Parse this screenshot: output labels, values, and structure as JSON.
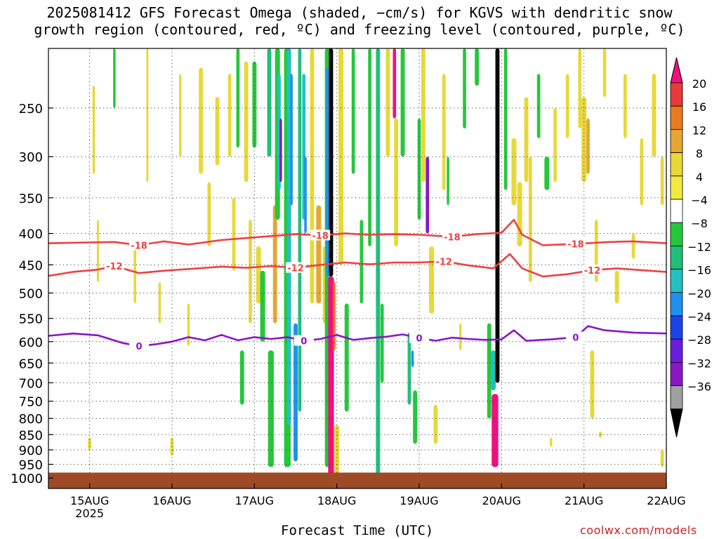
{
  "title_line1": "2025081412 GFS Forecast Omega (shaded, −cm/s) for KGVS with dendritic snow",
  "title_line2": "growth region (contoured, red, ºC) and freezing level (contoured, purple, ºC)",
  "credit": "coolwx.com/models",
  "chart_data": {
    "type": "heatmap",
    "title": "2025081412 GFS Forecast Omega (shaded, −cm/s) for KGVS with dendritic snow growth region (contoured, red, ºC) and freezing level (contoured, purple, ºC)",
    "xlabel": "Forecast Time (UTC)",
    "ylabel": "",
    "y_scale": "log-pressure",
    "y_reversed": true,
    "grid": true,
    "x_ticks": [
      {
        "day": 15,
        "label": "15AUG",
        "sublabel": "2025"
      },
      {
        "day": 16,
        "label": "16AUG"
      },
      {
        "day": 17,
        "label": "17AUG"
      },
      {
        "day": 18,
        "label": "18AUG"
      },
      {
        "day": 19,
        "label": "19AUG"
      },
      {
        "day": 20,
        "label": "20AUG"
      },
      {
        "day": 21,
        "label": "21AUG"
      },
      {
        "day": 22,
        "label": "22AUG"
      }
    ],
    "x_range_days": [
      14.5,
      22
    ],
    "y_ticks": [
      250,
      300,
      350,
      400,
      450,
      500,
      550,
      600,
      650,
      700,
      750,
      800,
      850,
      900,
      950,
      1000
    ],
    "y_range_hpa": [
      200,
      1040
    ],
    "surface_pressure_hpa": 980,
    "colorbar": {
      "labels": [
        "20",
        "16",
        "12",
        "8",
        "4",
        "−4",
        "−8",
        "−12",
        "−16",
        "−20",
        "−24",
        "−28",
        "−32",
        "−36"
      ],
      "colors": [
        "#f0107e",
        "#e83a3a",
        "#e97a20",
        "#e5a633",
        "#e8d838",
        "#f2ea3e",
        "#ffffff",
        "#24c83a",
        "#1fc07a",
        "#22c0c0",
        "#1e90f0",
        "#1c44e8",
        "#6a1fe0",
        "#8a16c8",
        "#a0a0a0",
        "#000000"
      ]
    },
    "contours": [
      {
        "name": "−18",
        "color": "#ef4040",
        "label": "-18",
        "points": [
          [
            14.5,
            415
          ],
          [
            14.9,
            414
          ],
          [
            15.3,
            413
          ],
          [
            15.6,
            418
          ],
          [
            15.9,
            412
          ],
          [
            16.2,
            417
          ],
          [
            16.6,
            410
          ],
          [
            16.9,
            407
          ],
          [
            17.2,
            404
          ],
          [
            17.5,
            401
          ],
          [
            17.8,
            403
          ],
          [
            18.1,
            400
          ],
          [
            18.4,
            402
          ],
          [
            18.7,
            401
          ],
          [
            19.0,
            402
          ],
          [
            19.4,
            405
          ],
          [
            19.7,
            401
          ],
          [
            20.0,
            399
          ],
          [
            20.15,
            380
          ],
          [
            20.25,
            402
          ],
          [
            20.5,
            418
          ],
          [
            20.9,
            416
          ],
          [
            21.3,
            413
          ],
          [
            21.6,
            412
          ],
          [
            22.0,
            415
          ]
        ]
      },
      {
        "name": "−12",
        "color": "#ef4040",
        "label": "-12",
        "points": [
          [
            14.5,
            469
          ],
          [
            14.8,
            462
          ],
          [
            15.1,
            458
          ],
          [
            15.3,
            452
          ],
          [
            15.6,
            464
          ],
          [
            15.9,
            460
          ],
          [
            16.2,
            457
          ],
          [
            16.6,
            453
          ],
          [
            16.9,
            455
          ],
          [
            17.2,
            452
          ],
          [
            17.5,
            455
          ],
          [
            17.8,
            450
          ],
          [
            18.1,
            446
          ],
          [
            18.4,
            449
          ],
          [
            18.7,
            446
          ],
          [
            19.0,
            446
          ],
          [
            19.3,
            444
          ],
          [
            19.6,
            451
          ],
          [
            19.9,
            456
          ],
          [
            20.1,
            432
          ],
          [
            20.25,
            456
          ],
          [
            20.5,
            470
          ],
          [
            20.8,
            466
          ],
          [
            21.1,
            459
          ],
          [
            21.4,
            456
          ],
          [
            21.7,
            459
          ],
          [
            22.0,
            462
          ]
        ]
      },
      {
        "name": "0",
        "color": "#8c14c8",
        "label": "0",
        "points": [
          [
            14.5,
            587
          ],
          [
            14.8,
            582
          ],
          [
            15.1,
            586
          ],
          [
            15.4,
            603
          ],
          [
            15.6,
            610
          ],
          [
            15.8,
            606
          ],
          [
            16.0,
            600
          ],
          [
            16.2,
            590
          ],
          [
            16.4,
            597
          ],
          [
            16.6,
            585
          ],
          [
            16.8,
            597
          ],
          [
            17.0,
            590
          ],
          [
            17.2,
            594
          ],
          [
            17.4,
            590
          ],
          [
            17.6,
            598
          ],
          [
            17.8,
            594
          ],
          [
            18.0,
            585
          ],
          [
            18.2,
            596
          ],
          [
            18.4,
            592
          ],
          [
            18.6,
            589
          ],
          [
            18.8,
            584
          ],
          [
            19.0,
            592
          ],
          [
            19.2,
            598
          ],
          [
            19.4,
            591
          ],
          [
            19.6,
            594
          ],
          [
            19.8,
            596
          ],
          [
            20.0,
            595
          ],
          [
            20.15,
            575
          ],
          [
            20.3,
            598
          ],
          [
            20.6,
            595
          ],
          [
            20.9,
            590
          ],
          [
            21.05,
            566
          ],
          [
            21.25,
            575
          ],
          [
            21.6,
            580
          ],
          [
            22.0,
            582
          ]
        ]
      }
    ]
  }
}
